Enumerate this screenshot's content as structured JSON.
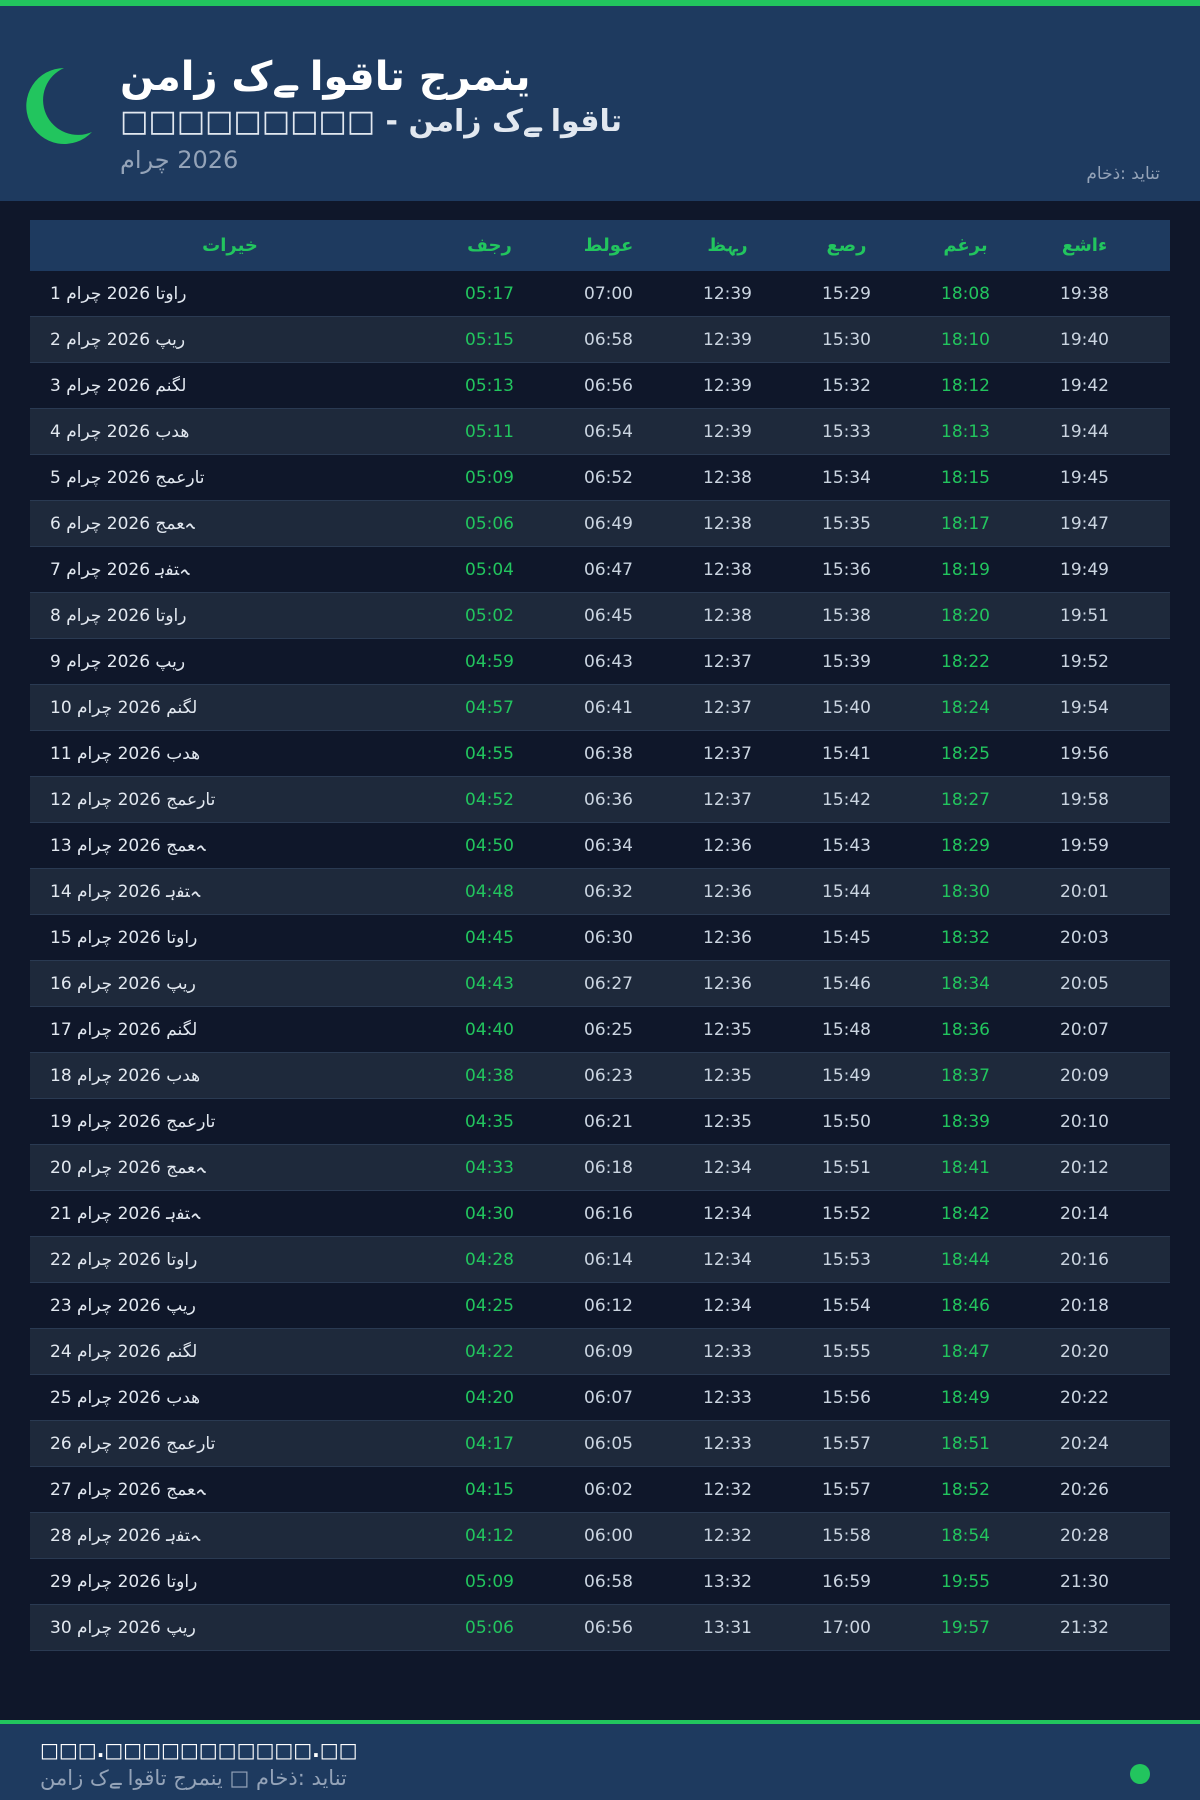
{
  "colors": {
    "accent": "#22c55e",
    "header_bg": "#1e3a5f",
    "page_bg": "#0f172a"
  },
  "header": {
    "icon": "crescent-moon-icon",
    "title": "نماز کے اوقات جرمنی",
    "subtitle": "□□□□□□□□□ - نماز کے اوقات",
    "month": "مارچ 2026",
    "source": "ماخذ: دیانت"
  },
  "table": {
    "columns": [
      "تاریخ",
      "فجر",
      "طلوع",
      "ظہر",
      "عصر",
      "مغرب",
      "عشاء"
    ],
    "rows": [
      [
        "1 مارچ 2026 اتوار",
        "05:17",
        "07:00",
        "12:39",
        "15:29",
        "18:08",
        "19:38"
      ],
      [
        "2 مارچ 2026 پیر",
        "05:15",
        "06:58",
        "12:39",
        "15:30",
        "18:10",
        "19:40"
      ],
      [
        "3 مارچ 2026 منگل",
        "05:13",
        "06:56",
        "12:39",
        "15:32",
        "18:12",
        "19:42"
      ],
      [
        "4 مارچ 2026 بدھ",
        "05:11",
        "06:54",
        "12:39",
        "15:33",
        "18:13",
        "19:44"
      ],
      [
        "5 مارچ 2026 جمعرات",
        "05:09",
        "06:52",
        "12:38",
        "15:34",
        "18:15",
        "19:45"
      ],
      [
        "6 مارچ 2026 جمعہ",
        "05:06",
        "06:49",
        "12:38",
        "15:35",
        "18:17",
        "19:47"
      ],
      [
        "7 مارچ 2026 ہفتہ",
        "05:04",
        "06:47",
        "12:38",
        "15:36",
        "18:19",
        "19:49"
      ],
      [
        "8 مارچ 2026 اتوار",
        "05:02",
        "06:45",
        "12:38",
        "15:38",
        "18:20",
        "19:51"
      ],
      [
        "9 مارچ 2026 پیر",
        "04:59",
        "06:43",
        "12:37",
        "15:39",
        "18:22",
        "19:52"
      ],
      [
        "10 مارچ 2026 منگل",
        "04:57",
        "06:41",
        "12:37",
        "15:40",
        "18:24",
        "19:54"
      ],
      [
        "11 مارچ 2026 بدھ",
        "04:55",
        "06:38",
        "12:37",
        "15:41",
        "18:25",
        "19:56"
      ],
      [
        "12 مارچ 2026 جمعرات",
        "04:52",
        "06:36",
        "12:37",
        "15:42",
        "18:27",
        "19:58"
      ],
      [
        "13 مارچ 2026 جمعہ",
        "04:50",
        "06:34",
        "12:36",
        "15:43",
        "18:29",
        "19:59"
      ],
      [
        "14 مارچ 2026 ہفتہ",
        "04:48",
        "06:32",
        "12:36",
        "15:44",
        "18:30",
        "20:01"
      ],
      [
        "15 مارچ 2026 اتوار",
        "04:45",
        "06:30",
        "12:36",
        "15:45",
        "18:32",
        "20:03"
      ],
      [
        "16 مارچ 2026 پیر",
        "04:43",
        "06:27",
        "12:36",
        "15:46",
        "18:34",
        "20:05"
      ],
      [
        "17 مارچ 2026 منگل",
        "04:40",
        "06:25",
        "12:35",
        "15:48",
        "18:36",
        "20:07"
      ],
      [
        "18 مارچ 2026 بدھ",
        "04:38",
        "06:23",
        "12:35",
        "15:49",
        "18:37",
        "20:09"
      ],
      [
        "19 مارچ 2026 جمعرات",
        "04:35",
        "06:21",
        "12:35",
        "15:50",
        "18:39",
        "20:10"
      ],
      [
        "20 مارچ 2026 جمعہ",
        "04:33",
        "06:18",
        "12:34",
        "15:51",
        "18:41",
        "20:12"
      ],
      [
        "21 مارچ 2026 ہفتہ",
        "04:30",
        "06:16",
        "12:34",
        "15:52",
        "18:42",
        "20:14"
      ],
      [
        "22 مارچ 2026 اتوار",
        "04:28",
        "06:14",
        "12:34",
        "15:53",
        "18:44",
        "20:16"
      ],
      [
        "23 مارچ 2026 پیر",
        "04:25",
        "06:12",
        "12:34",
        "15:54",
        "18:46",
        "20:18"
      ],
      [
        "24 مارچ 2026 منگل",
        "04:22",
        "06:09",
        "12:33",
        "15:55",
        "18:47",
        "20:20"
      ],
      [
        "25 مارچ 2026 بدھ",
        "04:20",
        "06:07",
        "12:33",
        "15:56",
        "18:49",
        "20:22"
      ],
      [
        "26 مارچ 2026 جمعرات",
        "04:17",
        "06:05",
        "12:33",
        "15:57",
        "18:51",
        "20:24"
      ],
      [
        "27 مارچ 2026 جمعہ",
        "04:15",
        "06:02",
        "12:32",
        "15:57",
        "18:52",
        "20:26"
      ],
      [
        "28 مارچ 2026 ہفتہ",
        "04:12",
        "06:00",
        "12:32",
        "15:58",
        "18:54",
        "20:28"
      ],
      [
        "29 مارچ 2026 اتوار",
        "05:09",
        "06:58",
        "13:32",
        "16:59",
        "19:55",
        "21:30"
      ],
      [
        "30 مارچ 2026 پیر",
        "05:06",
        "06:56",
        "13:31",
        "17:00",
        "19:57",
        "21:32"
      ]
    ]
  },
  "footer": {
    "url": "□□□.□□□□□□□□□□□.□□",
    "text": "نماز کے اوقات جرمنی □ ماخذ: دیانت"
  }
}
